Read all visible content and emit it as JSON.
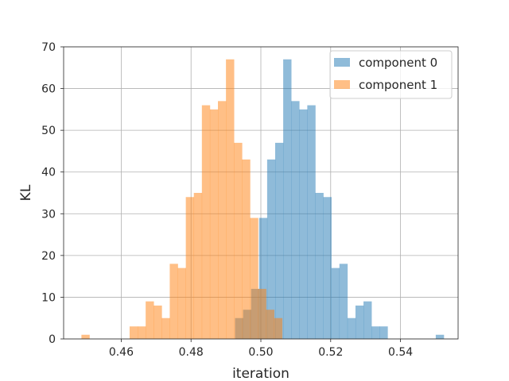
{
  "chart_data": {
    "type": "histogram",
    "xlabel": "iteration",
    "ylabel": "KL",
    "xlim": [
      0.4435,
      0.5565
    ],
    "ylim": [
      0,
      70
    ],
    "xticks": [
      0.46,
      0.48,
      0.5,
      0.52,
      0.54
    ],
    "xtick_labels": [
      "0.46",
      "0.48",
      "0.50",
      "0.52",
      "0.54"
    ],
    "yticks": [
      0,
      10,
      20,
      30,
      40,
      50,
      60,
      70
    ],
    "ytick_labels": [
      "0",
      "10",
      "20",
      "30",
      "40",
      "50",
      "60",
      "70"
    ],
    "grid": true,
    "legend_position": "top-right",
    "bin_width": 0.0023,
    "series": [
      {
        "name": "component 0",
        "color": "#1f77b4",
        "alpha": 0.5,
        "bins": [
          {
            "x0": 0.4926,
            "count": 5
          },
          {
            "x0": 0.4949,
            "count": 7
          },
          {
            "x0": 0.4972,
            "count": 12
          },
          {
            "x0": 0.4995,
            "count": 29
          },
          {
            "x0": 0.5018,
            "count": 43
          },
          {
            "x0": 0.5041,
            "count": 47
          },
          {
            "x0": 0.5064,
            "count": 67
          },
          {
            "x0": 0.5087,
            "count": 57
          },
          {
            "x0": 0.511,
            "count": 55
          },
          {
            "x0": 0.5133,
            "count": 56
          },
          {
            "x0": 0.5156,
            "count": 35
          },
          {
            "x0": 0.5179,
            "count": 34
          },
          {
            "x0": 0.5202,
            "count": 17
          },
          {
            "x0": 0.5225,
            "count": 18
          },
          {
            "x0": 0.5248,
            "count": 5
          },
          {
            "x0": 0.5271,
            "count": 8
          },
          {
            "x0": 0.5294,
            "count": 9
          },
          {
            "x0": 0.5317,
            "count": 3
          },
          {
            "x0": 0.534,
            "count": 3
          },
          {
            "x0": 0.5501,
            "count": 1
          }
        ]
      },
      {
        "name": "component 1",
        "color": "#ff7f0e",
        "alpha": 0.5,
        "bins": [
          {
            "x0": 0.4486,
            "count": 1
          },
          {
            "x0": 0.4624,
            "count": 3
          },
          {
            "x0": 0.4647,
            "count": 3
          },
          {
            "x0": 0.467,
            "count": 9
          },
          {
            "x0": 0.4693,
            "count": 8
          },
          {
            "x0": 0.4716,
            "count": 5
          },
          {
            "x0": 0.4739,
            "count": 18
          },
          {
            "x0": 0.4762,
            "count": 17
          },
          {
            "x0": 0.4785,
            "count": 34
          },
          {
            "x0": 0.4808,
            "count": 35
          },
          {
            "x0": 0.4831,
            "count": 56
          },
          {
            "x0": 0.4854,
            "count": 55
          },
          {
            "x0": 0.4877,
            "count": 57
          },
          {
            "x0": 0.49,
            "count": 67
          },
          {
            "x0": 0.4923,
            "count": 47
          },
          {
            "x0": 0.4946,
            "count": 43
          },
          {
            "x0": 0.4969,
            "count": 29
          },
          {
            "x0": 0.4992,
            "count": 12
          },
          {
            "x0": 0.5015,
            "count": 7
          },
          {
            "x0": 0.5038,
            "count": 5
          }
        ]
      }
    ]
  }
}
